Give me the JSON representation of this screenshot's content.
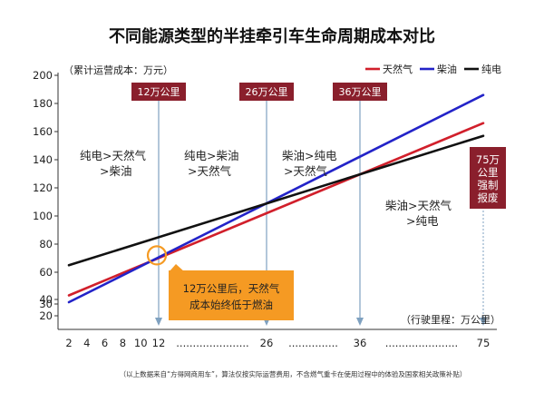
{
  "chart_data": {
    "type": "line",
    "title": "不同能源类型的半挂牵引车生命周期成本对比",
    "ylabel": "（累计运营成本：万元）",
    "xlabel": "（行驶里程：万公里）",
    "ylim": [
      20,
      200
    ],
    "yticks": [
      {
        "value": 20,
        "label": "20"
      },
      {
        "value": 30,
        "label": "30"
      },
      {
        "value": 40,
        "label": "40"
      },
      {
        "value": 60,
        "label": "60"
      },
      {
        "value": 80,
        "label": "80"
      },
      {
        "value": 100,
        "label": "100"
      },
      {
        "value": 120,
        "label": "120"
      },
      {
        "value": 140,
        "label": "140"
      },
      {
        "value": 160,
        "label": "160"
      },
      {
        "value": 180,
        "label": "180"
      },
      {
        "value": 200,
        "label": "200"
      }
    ],
    "xticks": [
      {
        "value": 2,
        "label": "2"
      },
      {
        "value": 4,
        "label": "4"
      },
      {
        "value": 6,
        "label": "6"
      },
      {
        "value": 8,
        "label": "8"
      },
      {
        "value": 10,
        "label": "10"
      },
      {
        "value": 12,
        "label": "12"
      },
      {
        "value": 26,
        "label": "26"
      },
      {
        "value": 36,
        "label": "36"
      },
      {
        "value": 75,
        "label": "75"
      }
    ],
    "x_dotted_segments": [
      {
        "from": 12,
        "to": 26,
        "label": "......................"
      },
      {
        "from": 26,
        "to": 36,
        "label": "..............."
      },
      {
        "from": 36,
        "to": 75,
        "label": "......................"
      }
    ],
    "series": [
      {
        "name": "天然气",
        "color": "#d11f2b",
        "points": [
          [
            2,
            43
          ],
          [
            75,
            166
          ]
        ]
      },
      {
        "name": "柴油",
        "color": "#2323c8",
        "points": [
          [
            2,
            34
          ],
          [
            75,
            186
          ]
        ]
      },
      {
        "name": "纯电",
        "color": "#111111",
        "points": [
          [
            2,
            65
          ],
          [
            75,
            157
          ]
        ]
      }
    ],
    "markers": [
      {
        "x": 12,
        "label": "12万公里"
      },
      {
        "x": 26,
        "label": "26万公里"
      },
      {
        "x": 36,
        "label": "36万公里"
      }
    ],
    "region_labels": [
      {
        "lines": [
          "纯电>天然气",
          ">柴油"
        ]
      },
      {
        "lines": [
          "纯电>柴油",
          ">天然气"
        ]
      },
      {
        "lines": [
          "柴油>纯电",
          ">天然气"
        ]
      },
      {
        "lines": [
          "柴油>天然气",
          ">纯电"
        ]
      }
    ],
    "callout": {
      "lines": [
        "12万公里后，天然气",
        "成本始终低于燃油"
      ]
    },
    "scrap_label": {
      "x": 75,
      "lines": [
        "75万",
        "公里",
        "强制",
        "报废"
      ]
    },
    "footnote": "（以上数据来自“方得网商用车”，算法仅按实际运营费用，不含燃气重卡在使用过程中的体验及国家相关政策补贴）"
  }
}
